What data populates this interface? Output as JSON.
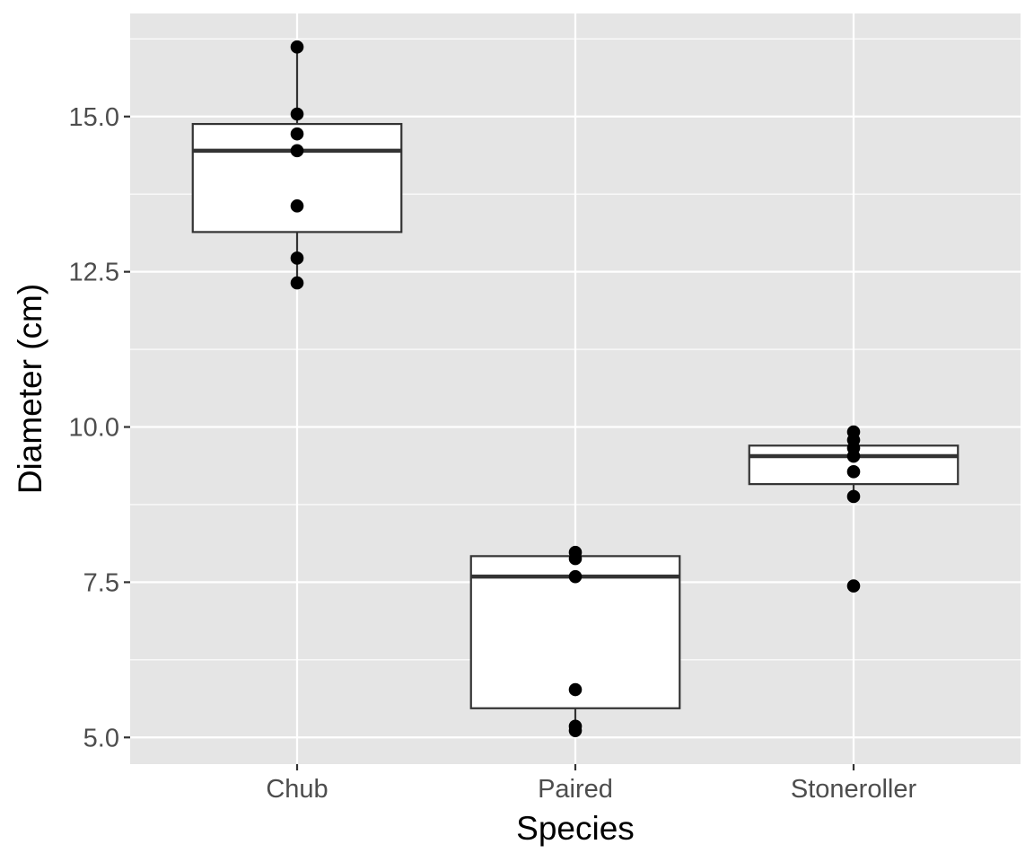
{
  "chart_data": {
    "type": "boxplot",
    "title": "",
    "xlabel": "Species",
    "ylabel": "Diameter (cm)",
    "categories": [
      "Chub",
      "Paired",
      "Stoneroller"
    ],
    "ylim": [
      4.57,
      16.66
    ],
    "xlim": [
      0.4,
      3.6
    ],
    "y_ticks": [
      5.0,
      7.5,
      10.0,
      12.5,
      15.0
    ],
    "y_tick_labels": [
      "5.0",
      "7.5",
      "10.0",
      "12.5",
      "15.0"
    ],
    "y_minor_ticks": [
      6.25,
      8.75,
      11.25,
      13.75,
      16.25
    ],
    "grid": true,
    "legend": "none",
    "boxes": [
      {
        "category": "Chub",
        "lower_whisker": 12.32,
        "q1": 13.14,
        "median": 14.45,
        "q3": 14.88,
        "upper_whisker": 16.12,
        "outliers": []
      },
      {
        "category": "Paired",
        "lower_whisker": 5.11,
        "q1": 5.47,
        "median": 7.59,
        "q3": 7.92,
        "upper_whisker": 7.98,
        "outliers": []
      },
      {
        "category": "Stoneroller",
        "lower_whisker": 8.88,
        "q1": 9.08,
        "median": 9.53,
        "q3": 9.7,
        "upper_whisker": 9.92,
        "outliers": [
          7.44
        ]
      }
    ],
    "points": [
      {
        "category": "Chub",
        "values": [
          16.12,
          15.04,
          14.72,
          14.45,
          13.56,
          12.72,
          12.32
        ]
      },
      {
        "category": "Paired",
        "values": [
          7.98,
          7.88,
          7.59,
          5.77,
          5.18,
          5.11
        ]
      },
      {
        "category": "Stoneroller",
        "values": [
          9.92,
          9.79,
          9.66,
          9.53,
          9.28,
          8.88,
          7.44
        ]
      }
    ],
    "colors": {
      "panel_background": "#e5e5e5",
      "grid": "#ffffff",
      "box_fill": "#ffffff",
      "box_line": "#333333",
      "point": "#000000",
      "tick_label": "#4d4d4d",
      "axis_title": "#000000"
    }
  }
}
